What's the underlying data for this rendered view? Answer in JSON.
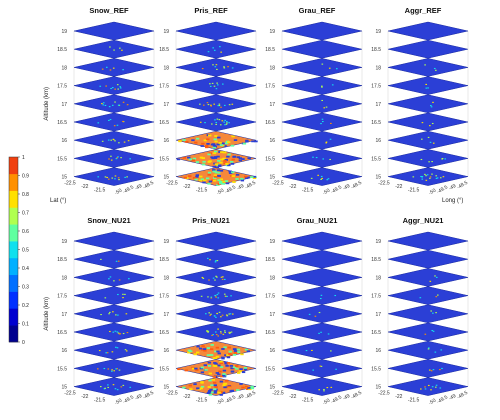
{
  "chart_data": {
    "type": "heatmap",
    "altitude_levels": [
      "15",
      "15.5",
      "16",
      "16.5",
      "17",
      "17.5",
      "18",
      "18.5",
      "19"
    ],
    "altitude_label": "Altitude (km)",
    "lat_label": "Lat (°)",
    "long_label": "Long (°)",
    "lat_ticks": [
      "-22.5",
      "-22",
      "-21.5"
    ],
    "long_ticks": [
      "-50",
      "-49.5",
      "-49",
      "-48.5"
    ],
    "colorbar": {
      "range": [
        0,
        1
      ],
      "ticks": [
        "0",
        "0.1",
        "0.2",
        "0.3",
        "0.4",
        "0.5",
        "0.6",
        "0.7",
        "0.8",
        "0.9",
        "1"
      ],
      "colors": [
        "#00008f",
        "#0000d0",
        "#0030ff",
        "#0070ff",
        "#00b0ff",
        "#10e0ee",
        "#60ffa0",
        "#b0ff50",
        "#ffe000",
        "#ff9000",
        "#f04010"
      ]
    },
    "panels": [
      {
        "title": "Snow_REF",
        "activity": [
          0.15,
          0.1,
          0.12,
          0.08,
          0.15,
          0.12,
          0.05,
          0.03,
          0.0
        ]
      },
      {
        "title": "Pris_REF",
        "activity": [
          0.95,
          0.9,
          0.7,
          0.25,
          0.2,
          0.1,
          0.12,
          0.05,
          0.0
        ]
      },
      {
        "title": "Grau_REF",
        "activity": [
          0.08,
          0.04,
          0.02,
          0.03,
          0.02,
          0.01,
          0.01,
          0.0,
          0.0
        ]
      },
      {
        "title": "Aggr_REF",
        "activity": [
          0.25,
          0.06,
          0.03,
          0.02,
          0.02,
          0.01,
          0.01,
          0.0,
          0.0
        ]
      },
      {
        "title": "Snow_NU21",
        "activity": [
          0.15,
          0.12,
          0.1,
          0.12,
          0.08,
          0.05,
          0.05,
          0.02,
          0.0
        ]
      },
      {
        "title": "Pris_NU21",
        "activity": [
          0.9,
          0.85,
          0.75,
          0.3,
          0.25,
          0.2,
          0.15,
          0.05,
          0.0
        ]
      },
      {
        "title": "Grau_NU21",
        "activity": [
          0.05,
          0.03,
          0.02,
          0.02,
          0.01,
          0.01,
          0.0,
          0.0,
          0.0
        ]
      },
      {
        "title": "Aggr_NU21",
        "activity": [
          0.12,
          0.05,
          0.03,
          0.02,
          0.02,
          0.01,
          0.01,
          0.0,
          0.0
        ]
      }
    ]
  }
}
